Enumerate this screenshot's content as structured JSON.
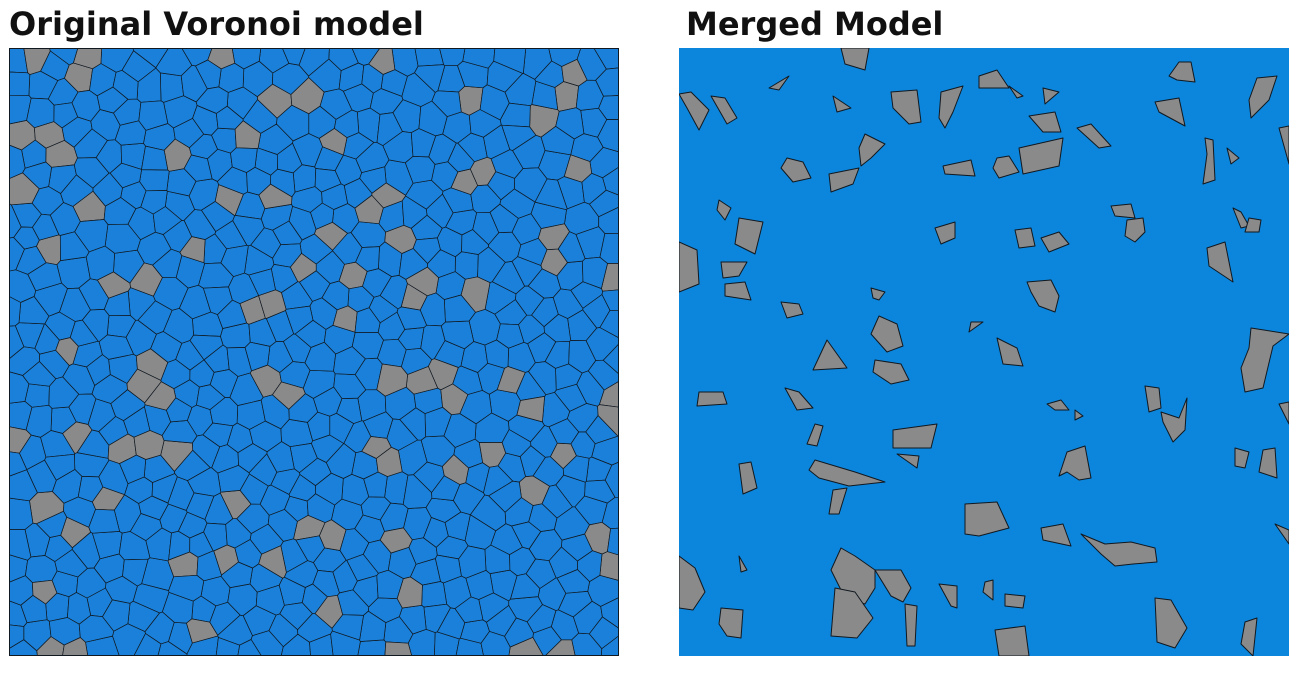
{
  "panels": {
    "left": {
      "title": "Original Voronoi model"
    },
    "right": {
      "title": "Merged Model"
    }
  },
  "colors": {
    "matrix": "#1a80d9",
    "matrix_merged": "#0b86dc",
    "inclusion": "#8a8a8a",
    "edge": "#101820"
  }
}
